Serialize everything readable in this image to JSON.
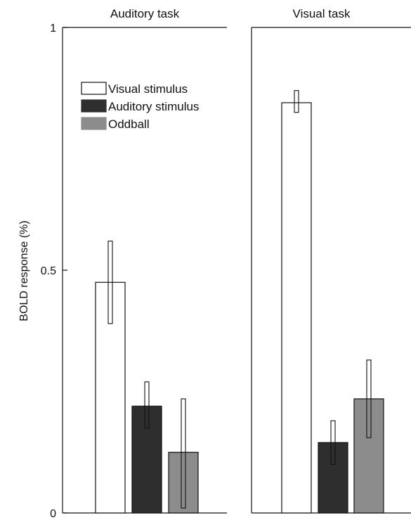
{
  "chart_data": {
    "type": "bar",
    "ylabel": "BOLD response (%)",
    "ylim": [
      0,
      1
    ],
    "yticks": [
      "0",
      "0.5",
      "1"
    ],
    "grid": false,
    "legend_position": "top-left (inside first panel)",
    "series": [
      {
        "name": "Visual stimulus",
        "color": "#ffffff"
      },
      {
        "name": "Auditory stimulus",
        "color": "#2e2e2e"
      },
      {
        "name": "Oddball",
        "color": "#8c8c8c"
      }
    ],
    "panels": [
      {
        "title": "Auditory task",
        "values": [
          0.475,
          0.22,
          0.125
        ],
        "errors": [
          [
            0.39,
            0.56
          ],
          [
            0.175,
            0.27
          ],
          [
            0.01,
            0.235
          ]
        ]
      },
      {
        "title": "Visual task",
        "values": [
          0.845,
          0.145,
          0.235
        ],
        "errors": [
          [
            0.825,
            0.87
          ],
          [
            0.1,
            0.19
          ],
          [
            0.155,
            0.315
          ]
        ]
      }
    ]
  }
}
